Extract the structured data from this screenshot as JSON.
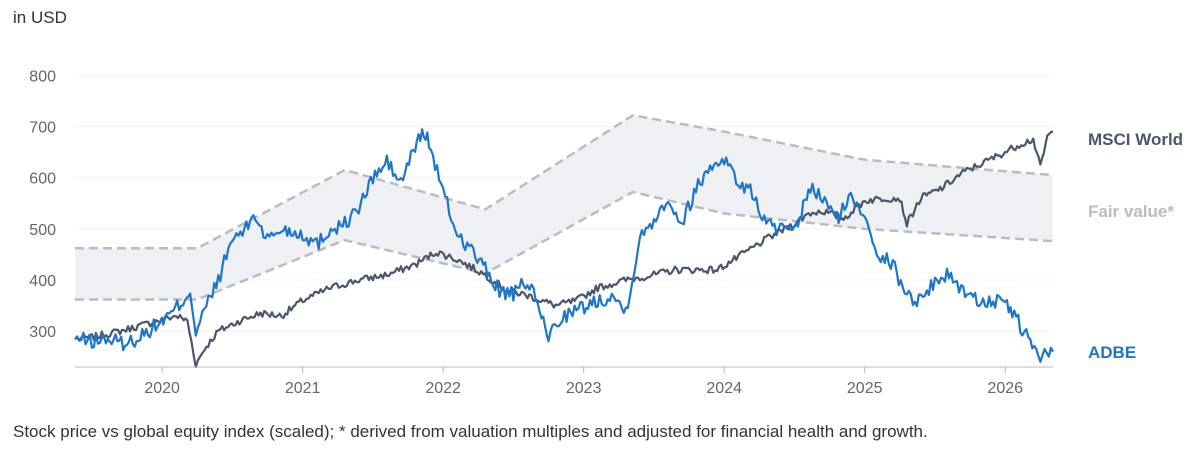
{
  "unit_label": "in USD",
  "caption": "Stock price vs global equity index (scaled); * derived from valuation multiples and adjusted for financial health and growth.",
  "colors": {
    "adbe": "#1f76c8",
    "msci": "#4b566b",
    "fair_value": "#b9bcc4",
    "band_fill": "#eef0f3",
    "tick_text": "#666666"
  },
  "chart_data": {
    "type": "line",
    "title": "",
    "xlabel": "",
    "ylabel": "in USD",
    "xlim": [
      2019.38,
      2026.34
    ],
    "ylim": [
      230,
      830
    ],
    "x_ticks": [
      {
        "value": 2020,
        "label": "2020"
      },
      {
        "value": 2021,
        "label": "2021"
      },
      {
        "value": 2022,
        "label": "2022"
      },
      {
        "value": 2023,
        "label": "2023"
      },
      {
        "value": 2024,
        "label": "2024"
      },
      {
        "value": 2025,
        "label": "2025"
      },
      {
        "value": 2026,
        "label": "2026"
      }
    ],
    "y_ticks": [
      {
        "value": 300,
        "label": "300"
      },
      {
        "value": 400,
        "label": "400"
      },
      {
        "value": 500,
        "label": "500"
      },
      {
        "value": 600,
        "label": "600"
      },
      {
        "value": 700,
        "label": "700"
      },
      {
        "value": 800,
        "label": "800"
      }
    ],
    "grid": true,
    "legend_placement": "right (end-of-line labels)",
    "series": [
      {
        "name": "ADBE",
        "key": "adbe",
        "x": [
          2019.38,
          2019.5,
          2019.6,
          2019.75,
          2019.9,
          2020.05,
          2020.15,
          2020.2,
          2020.24,
          2020.3,
          2020.4,
          2020.5,
          2020.6,
          2020.65,
          2020.75,
          2020.85,
          2021.0,
          2021.1,
          2021.2,
          2021.3,
          2021.4,
          2021.5,
          2021.6,
          2021.7,
          2021.8,
          2021.85,
          2021.9,
          2022.0,
          2022.1,
          2022.2,
          2022.3,
          2022.4,
          2022.5,
          2022.6,
          2022.7,
          2022.75,
          2022.85,
          2022.95,
          2023.1,
          2023.2,
          2023.3,
          2023.4,
          2023.5,
          2023.6,
          2023.7,
          2023.8,
          2023.9,
          2024.0,
          2024.1,
          2024.2,
          2024.3,
          2024.4,
          2024.5,
          2024.55,
          2024.6,
          2024.7,
          2024.8,
          2024.9,
          2025.0,
          2025.1,
          2025.2,
          2025.3,
          2025.4,
          2025.5,
          2025.6,
          2025.7,
          2025.8,
          2025.9,
          2026.0,
          2026.05,
          2026.15,
          2026.25,
          2026.34
        ],
        "y": [
          285,
          280,
          285,
          275,
          300,
          330,
          360,
          380,
          295,
          340,
          400,
          480,
          500,
          530,
          480,
          500,
          490,
          470,
          500,
          510,
          540,
          600,
          630,
          590,
          660,
          690,
          670,
          570,
          490,
          460,
          420,
          380,
          370,
          400,
          330,
          290,
          330,
          340,
          360,
          370,
          340,
          480,
          520,
          560,
          510,
          580,
          620,
          640,
          590,
          570,
          510,
          500,
          490,
          530,
          580,
          560,
          520,
          560,
          530,
          450,
          430,
          370,
          360,
          400,
          410,
          380,
          360,
          360,
          350,
          340,
          290,
          250,
          260
        ]
      },
      {
        "name": "MSCI World",
        "key": "msci",
        "x": [
          2019.38,
          2019.5,
          2019.7,
          2019.9,
          2020.1,
          2020.18,
          2020.24,
          2020.3,
          2020.4,
          2020.55,
          2020.7,
          2020.85,
          2021.0,
          2021.2,
          2021.4,
          2021.6,
          2021.8,
          2021.95,
          2022.1,
          2022.3,
          2022.45,
          2022.6,
          2022.75,
          2022.8,
          2022.95,
          2023.1,
          2023.3,
          2023.5,
          2023.65,
          2023.8,
          2023.95,
          2024.1,
          2024.3,
          2024.5,
          2024.6,
          2024.7,
          2024.85,
          2025.0,
          2025.15,
          2025.25,
          2025.3,
          2025.4,
          2025.55,
          2025.7,
          2025.85,
          2026.0,
          2026.1,
          2026.2,
          2026.25,
          2026.3,
          2026.34
        ],
        "y": [
          285,
          288,
          300,
          315,
          330,
          320,
          235,
          265,
          300,
          320,
          335,
          330,
          360,
          385,
          400,
          410,
          430,
          455,
          440,
          410,
          380,
          370,
          355,
          350,
          360,
          385,
          400,
          410,
          420,
          420,
          420,
          445,
          480,
          510,
          530,
          535,
          520,
          555,
          560,
          560,
          510,
          560,
          580,
          610,
          630,
          650,
          665,
          675,
          620,
          680,
          690
        ]
      },
      {
        "name": "Fair value*",
        "key": "fair_value",
        "type": "band",
        "x": [
          2019.38,
          2020.25,
          2021.3,
          2022.3,
          2023.35,
          2024.0,
          2025.0,
          2026.34
        ],
        "upper": [
          462,
          462,
          615,
          538,
          722,
          690,
          635,
          605
        ],
        "lower": [
          362,
          362,
          478,
          413,
          572,
          530,
          500,
          476
        ]
      }
    ],
    "end_labels": [
      {
        "series": "MSCI World",
        "text": "MSCI World"
      },
      {
        "series": "Fair value*",
        "text": "Fair value*"
      },
      {
        "series": "ADBE",
        "text": "ADBE"
      }
    ]
  }
}
